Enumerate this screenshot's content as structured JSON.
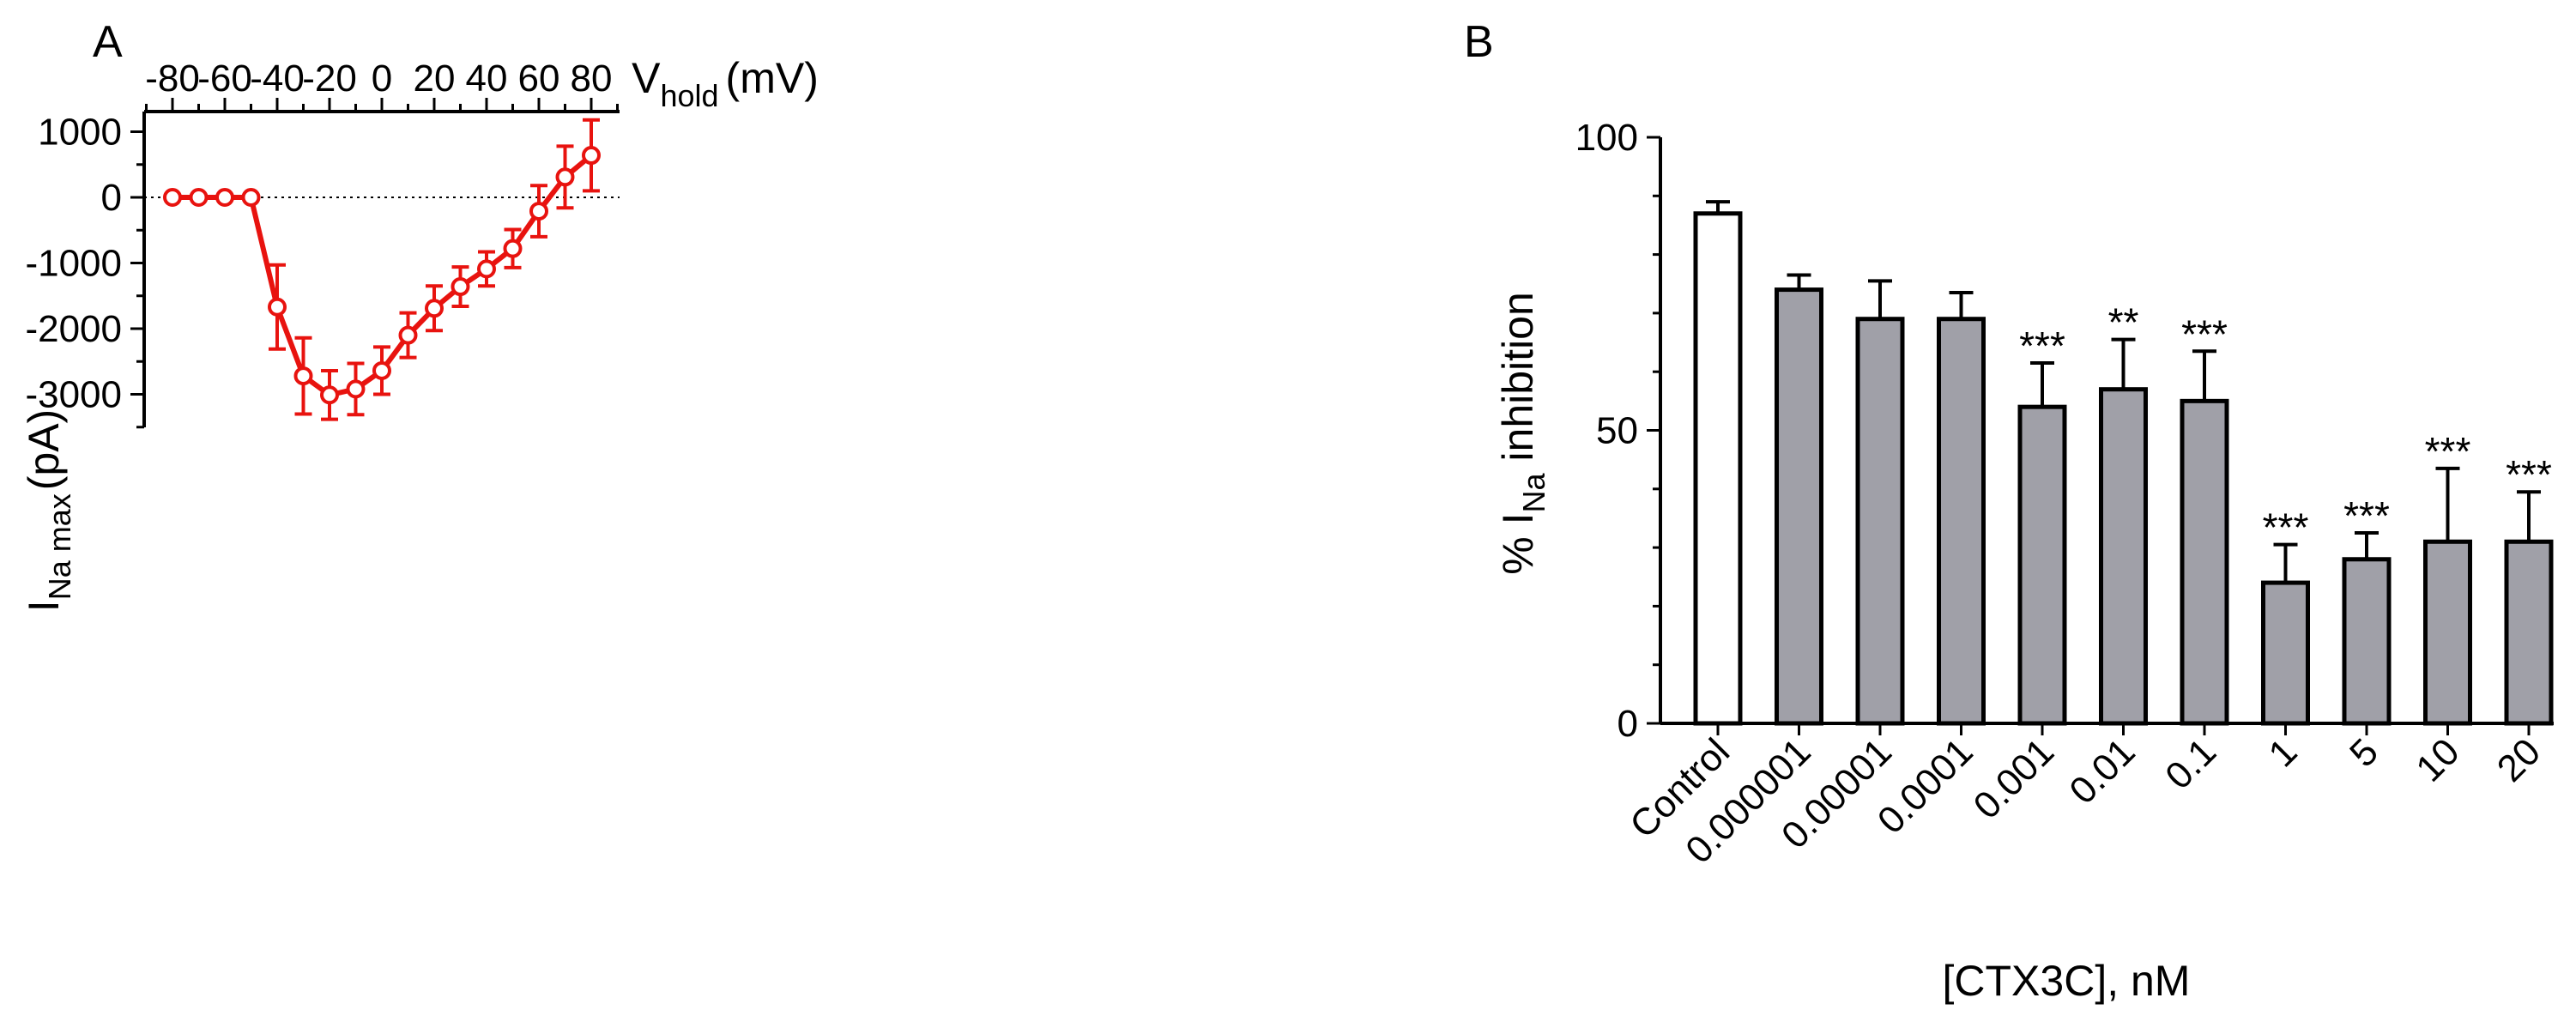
{
  "chart_data": [
    {
      "panel_label": "A",
      "type": "line",
      "title": "",
      "xlabel_main": "V",
      "xlabel_sub": "hold",
      "xlabel_unit": "(mV)",
      "ylabel_main": "I",
      "ylabel_sub": "Na max",
      "ylabel_unit": "(pA)",
      "xlim": [
        -90,
        90
      ],
      "ylim": [
        -3500,
        1300
      ],
      "x_ticks": [
        -80,
        -60,
        -40,
        -20,
        0,
        20,
        40,
        60,
        80
      ],
      "x_tick_labels": [
        "-80",
        "-60",
        "-40",
        "-20",
        "0",
        "20",
        "40",
        "60",
        "80"
      ],
      "y_ticks": [
        1000,
        0,
        -1000,
        -2000,
        -3000
      ],
      "y_tick_labels": [
        "1000",
        "0",
        "-1000",
        "-2000",
        "-3000"
      ],
      "zero_reference_line": "dotted",
      "series": [
        {
          "name": "I_Na max",
          "color": "#e8130f",
          "marker": "open-circle",
          "x": [
            -80,
            -70,
            -60,
            -50,
            -40,
            -30,
            -20,
            -10,
            0,
            10,
            20,
            30,
            40,
            50,
            60,
            70,
            80
          ],
          "y": [
            0,
            0,
            0,
            0,
            -1670,
            -2720,
            -3010,
            -2920,
            -2640,
            -2100,
            -1690,
            -1360,
            -1090,
            -780,
            -210,
            310,
            640
          ],
          "error": [
            0,
            0,
            0,
            0,
            640,
            580,
            370,
            390,
            360,
            340,
            340,
            300,
            260,
            290,
            390,
            470,
            540
          ]
        }
      ]
    },
    {
      "panel_label": "B",
      "type": "bar",
      "title": "",
      "xlabel": "[CTX3C], nM",
      "ylabel_main": "% I",
      "ylabel_sub": "Na",
      "ylabel_rest": " inhibition",
      "ylim": [
        0,
        100
      ],
      "y_ticks": [
        0,
        50,
        100
      ],
      "y_tick_labels": [
        "0",
        "50",
        "100"
      ],
      "categories": [
        "Control",
        "0.000001",
        "0.00001",
        "0.0001",
        "0.001",
        "0.01",
        "0.1",
        "1",
        "5",
        "10",
        "20"
      ],
      "values": [
        87,
        74,
        69,
        69,
        54,
        57,
        55,
        24,
        28,
        31,
        31
      ],
      "errors": [
        2,
        2.5,
        6.5,
        4.5,
        7.5,
        8.5,
        8.5,
        6.5,
        4.5,
        12.5,
        8.5
      ],
      "fills": [
        "#ffffff",
        "#a0a0a8",
        "#a0a0a8",
        "#a0a0a8",
        "#a0a0a8",
        "#a0a0a8",
        "#a0a0a8",
        "#a0a0a8",
        "#a0a0a8",
        "#a0a0a8",
        "#a0a0a8"
      ],
      "significance": [
        "",
        "",
        "",
        "",
        "***",
        "**",
        "***",
        "***",
        "***",
        "***",
        "***"
      ]
    }
  ]
}
